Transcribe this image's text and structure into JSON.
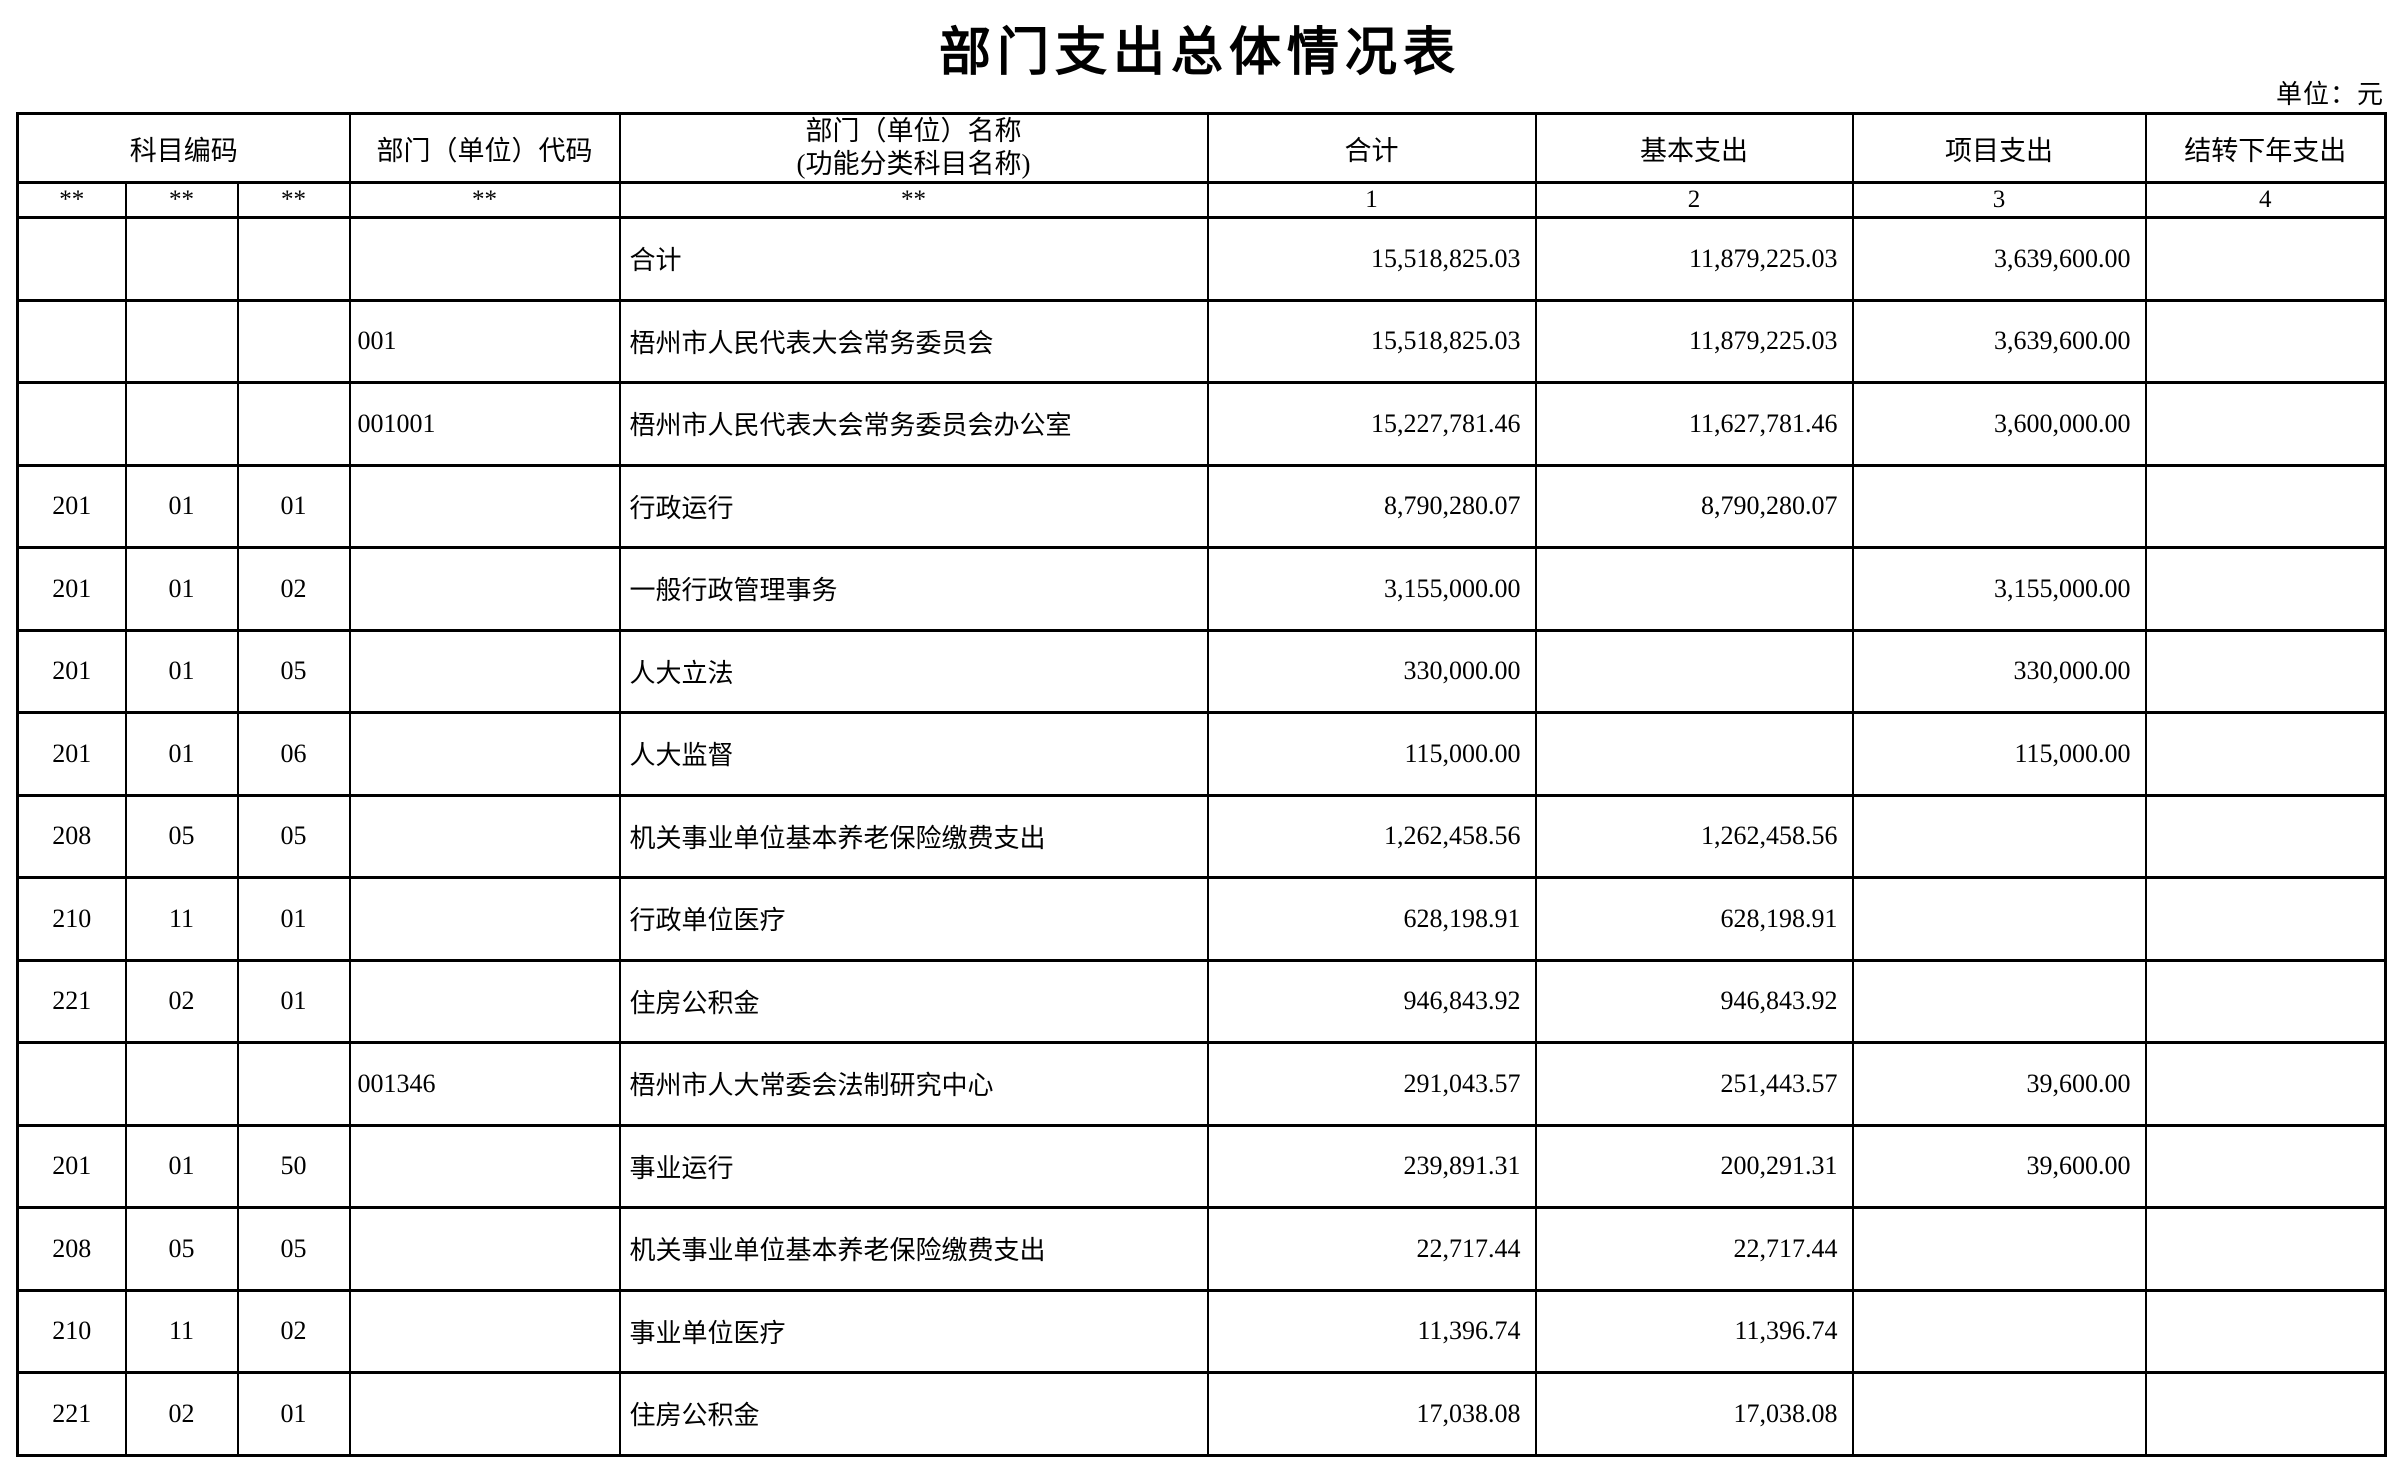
{
  "page": {
    "title": "部门支出总体情况表",
    "unit_note": "单位：元"
  },
  "table": {
    "header": {
      "subject_code": "科目编码",
      "dept_code": "部门（单位）代码",
      "dept_name_line1": "部门（单位）名称",
      "dept_name_line2": "(功能分类科目名称)",
      "total": "合计",
      "basic": "基本支出",
      "project": "项目支出",
      "carryover": "结转下年支出"
    },
    "subheader": {
      "code1": "**",
      "code2": "**",
      "code3": "**",
      "dept_code": "**",
      "name": "**",
      "total": "1",
      "basic": "2",
      "project": "3",
      "carryover": "4"
    },
    "rows": [
      {
        "code1": "",
        "code2": "",
        "code3": "",
        "dept_code": "",
        "name": "合计",
        "total": "15,518,825.03",
        "basic": "11,879,225.03",
        "project": "3,639,600.00",
        "carryover": ""
      },
      {
        "code1": "",
        "code2": "",
        "code3": "",
        "dept_code": "001",
        "name": "梧州市人民代表大会常务委员会",
        "total": "15,518,825.03",
        "basic": "11,879,225.03",
        "project": "3,639,600.00",
        "carryover": ""
      },
      {
        "code1": "",
        "code2": "",
        "code3": "",
        "dept_code": "001001",
        "name": "梧州市人民代表大会常务委员会办公室",
        "total": "15,227,781.46",
        "basic": "11,627,781.46",
        "project": "3,600,000.00",
        "carryover": ""
      },
      {
        "code1": "201",
        "code2": "01",
        "code3": "01",
        "dept_code": "",
        "name": "行政运行",
        "total": "8,790,280.07",
        "basic": "8,790,280.07",
        "project": "",
        "carryover": ""
      },
      {
        "code1": "201",
        "code2": "01",
        "code3": "02",
        "dept_code": "",
        "name": "一般行政管理事务",
        "total": "3,155,000.00",
        "basic": "",
        "project": "3,155,000.00",
        "carryover": ""
      },
      {
        "code1": "201",
        "code2": "01",
        "code3": "05",
        "dept_code": "",
        "name": "人大立法",
        "total": "330,000.00",
        "basic": "",
        "project": "330,000.00",
        "carryover": ""
      },
      {
        "code1": "201",
        "code2": "01",
        "code3": "06",
        "dept_code": "",
        "name": "人大监督",
        "total": "115,000.00",
        "basic": "",
        "project": "115,000.00",
        "carryover": ""
      },
      {
        "code1": "208",
        "code2": "05",
        "code3": "05",
        "dept_code": "",
        "name": "机关事业单位基本养老保险缴费支出",
        "total": "1,262,458.56",
        "basic": "1,262,458.56",
        "project": "",
        "carryover": ""
      },
      {
        "code1": "210",
        "code2": "11",
        "code3": "01",
        "dept_code": "",
        "name": "行政单位医疗",
        "total": "628,198.91",
        "basic": "628,198.91",
        "project": "",
        "carryover": ""
      },
      {
        "code1": "221",
        "code2": "02",
        "code3": "01",
        "dept_code": "",
        "name": "住房公积金",
        "total": "946,843.92",
        "basic": "946,843.92",
        "project": "",
        "carryover": ""
      },
      {
        "code1": "",
        "code2": "",
        "code3": "",
        "dept_code": "001346",
        "name": "梧州市人大常委会法制研究中心",
        "total": "291,043.57",
        "basic": "251,443.57",
        "project": "39,600.00",
        "carryover": ""
      },
      {
        "code1": "201",
        "code2": "01",
        "code3": "50",
        "dept_code": "",
        "name": "事业运行",
        "total": "239,891.31",
        "basic": "200,291.31",
        "project": "39,600.00",
        "carryover": ""
      },
      {
        "code1": "208",
        "code2": "05",
        "code3": "05",
        "dept_code": "",
        "name": "机关事业单位基本养老保险缴费支出",
        "total": "22,717.44",
        "basic": "22,717.44",
        "project": "",
        "carryover": ""
      },
      {
        "code1": "210",
        "code2": "11",
        "code3": "02",
        "dept_code": "",
        "name": "事业单位医疗",
        "total": "11,396.74",
        "basic": "11,396.74",
        "project": "",
        "carryover": ""
      },
      {
        "code1": "221",
        "code2": "02",
        "code3": "01",
        "dept_code": "",
        "name": "住房公积金",
        "total": "17,038.08",
        "basic": "17,038.08",
        "project": "",
        "carryover": ""
      }
    ]
  }
}
